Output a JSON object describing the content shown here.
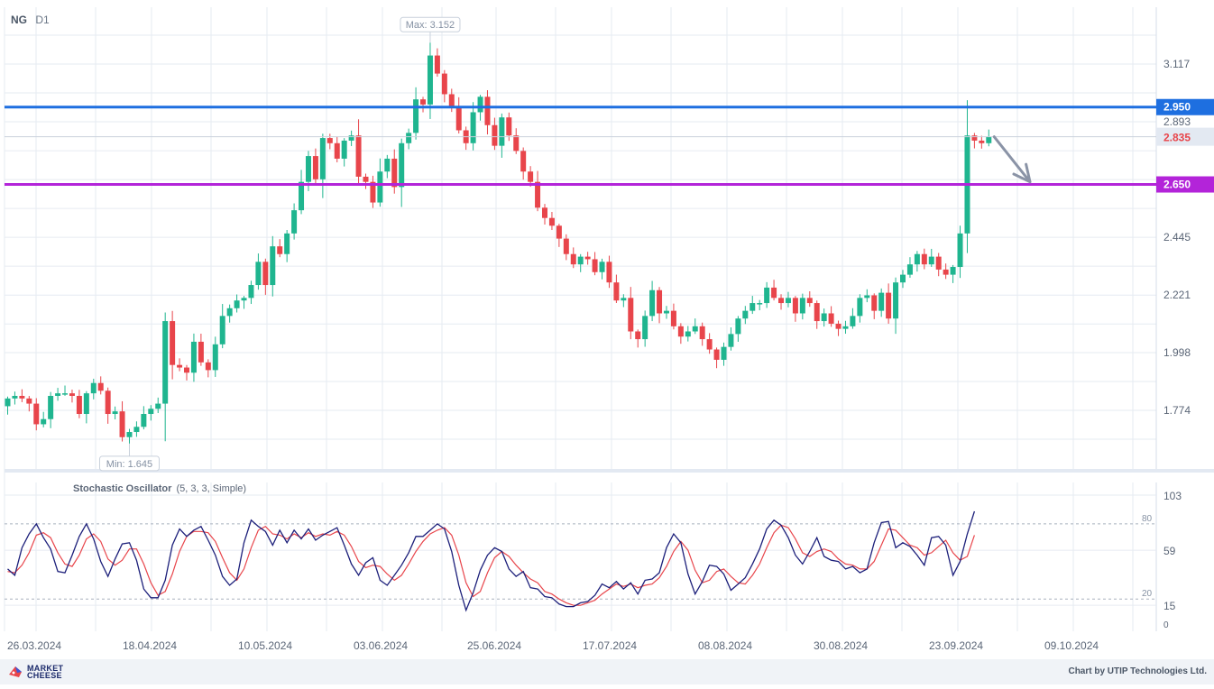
{
  "header": {
    "symbol": "NG",
    "timeframe": "D1"
  },
  "footer": {
    "brand_line1": "MARKET",
    "brand_line2": "CHEESE",
    "credit": "Chart by UTIP Technologies Ltd."
  },
  "colors": {
    "bull": "#1fb58f",
    "bear": "#e8454b",
    "level_resistance": "#1e6fe0",
    "level_support": "#b324d9",
    "stoch_k": "#1c1f7a",
    "stoch_d": "#e8454b",
    "arrow": "#8a93a6"
  },
  "chart_data": [
    {
      "type": "candlestick",
      "symbol": "NG",
      "timeframe": "D1",
      "y_ticks": [
        "3.117",
        "2.893",
        "2.445",
        "2.221",
        "1.998",
        "1.774"
      ],
      "ylim": [
        1.57,
        3.35
      ],
      "x_ticks": [
        "26.03.2024",
        "18.04.2024",
        "10.05.2024",
        "03.06.2024",
        "25.06.2024",
        "17.07.2024",
        "08.08.2024",
        "30.08.2024",
        "23.09.2024",
        "09.10.2024"
      ],
      "grid": true,
      "price_levels": [
        {
          "label": "2.950",
          "value": 2.95,
          "color": "#1e6fe0"
        },
        {
          "label": "2.650",
          "value": 2.65,
          "color": "#b324d9"
        }
      ],
      "current_price": {
        "label": "2.835",
        "value": 2.835
      },
      "annotations": [
        {
          "text": "Max: 3.152",
          "value": 3.152
        },
        {
          "text": "Min: 1.645",
          "value": 1.645
        }
      ],
      "forecast_arrow": {
        "from": [
          2.835,
          2.835
        ],
        "to": 2.66,
        "direction": "down"
      },
      "closes": [
        1.82,
        1.83,
        1.82,
        1.8,
        1.72,
        1.74,
        1.83,
        1.84,
        1.84,
        1.83,
        1.76,
        1.84,
        1.88,
        1.85,
        1.76,
        1.77,
        1.67,
        1.69,
        1.71,
        1.76,
        1.78,
        1.8,
        2.12,
        1.95,
        1.94,
        1.92,
        2.04,
        1.96,
        1.93,
        2.03,
        2.14,
        2.17,
        2.2,
        2.21,
        2.26,
        2.35,
        2.26,
        2.41,
        2.38,
        2.46,
        2.55,
        2.66,
        2.76,
        2.67,
        2.83,
        2.81,
        2.75,
        2.82,
        2.84,
        2.68,
        2.66,
        2.58,
        2.7,
        2.75,
        2.64,
        2.81,
        2.85,
        2.98,
        2.96,
        3.15,
        3.08,
        3.0,
        2.95,
        2.86,
        2.81,
        2.93,
        2.99,
        2.88,
        2.8,
        2.91,
        2.84,
        2.78,
        2.7,
        2.66,
        2.56,
        2.52,
        2.49,
        2.44,
        2.38,
        2.34,
        2.37,
        2.36,
        2.31,
        2.35,
        2.27,
        2.2,
        2.21,
        2.08,
        2.05,
        2.14,
        2.24,
        2.15,
        2.16,
        2.1,
        2.06,
        2.08,
        2.1,
        2.05,
        2.01,
        1.97,
        2.02,
        2.07,
        2.13,
        2.16,
        2.19,
        2.19,
        2.25,
        2.21,
        2.19,
        2.21,
        2.15,
        2.21,
        2.19,
        2.12,
        2.15,
        2.11,
        2.09,
        2.1,
        2.14,
        2.21,
        2.22,
        2.16,
        2.23,
        2.13,
        2.27,
        2.3,
        2.34,
        2.38,
        2.34,
        2.37,
        2.32,
        2.3,
        2.33,
        2.46,
        2.84,
        2.82,
        2.81,
        2.835
      ],
      "stochastic_oscillator": {
        "label": "Stochastic Oscillator",
        "params": "(5, 3, 3, Simple)",
        "y_ticks": [
          "103",
          "59",
          "15",
          "0"
        ],
        "ylim": [
          0,
          103
        ],
        "levels": [
          80,
          20
        ],
        "level_labels": [
          "80",
          "20"
        ],
        "k": [
          44,
          39,
          61,
          72,
          80,
          69,
          60,
          42,
          41,
          55,
          70,
          80,
          68,
          50,
          38,
          52,
          64,
          65,
          51,
          28,
          21,
          21,
          35,
          63,
          76,
          70,
          75,
          78,
          67,
          55,
          38,
          31,
          36,
          65,
          83,
          78,
          74,
          63,
          75,
          65,
          75,
          68,
          76,
          67,
          71,
          74,
          77,
          63,
          48,
          39,
          49,
          53,
          35,
          31,
          39,
          47,
          57,
          70,
          70,
          75,
          80,
          76,
          58,
          31,
          11,
          25,
          43,
          55,
          61,
          58,
          44,
          38,
          42,
          29,
          28,
          22,
          21,
          16,
          14,
          14,
          17,
          18,
          23,
          32,
          29,
          34,
          28,
          33,
          24,
          35,
          36,
          41,
          61,
          72,
          65,
          40,
          24,
          34,
          47,
          46,
          40,
          27,
          32,
          37,
          48,
          60,
          76,
          83,
          79,
          69,
          55,
          48,
          58,
          69,
          54,
          51,
          50,
          44,
          46,
          41,
          44,
          65,
          81,
          82,
          61,
          65,
          62,
          55,
          47,
          69,
          70,
          63,
          39,
          50,
          72,
          90
        ],
        "d": [
          42,
          41,
          47,
          57,
          71,
          73,
          69,
          57,
          48,
          46,
          55,
          68,
          72,
          66,
          52,
          47,
          51,
          60,
          60,
          48,
          33,
          23,
          26,
          40,
          58,
          70,
          74,
          74,
          73,
          66,
          53,
          41,
          35,
          44,
          61,
          75,
          78,
          72,
          71,
          68,
          72,
          69,
          73,
          70,
          72,
          71,
          74,
          71,
          62,
          50,
          45,
          47,
          46,
          40,
          35,
          39,
          48,
          58,
          66,
          72,
          75,
          77,
          71,
          55,
          33,
          22,
          26,
          41,
          53,
          58,
          54,
          47,
          41,
          36,
          33,
          26,
          24,
          20,
          17,
          15,
          15,
          17,
          19,
          24,
          28,
          32,
          30,
          32,
          29,
          31,
          32,
          37,
          46,
          58,
          66,
          59,
          43,
          33,
          35,
          42,
          44,
          38,
          33,
          32,
          39,
          48,
          61,
          73,
          79,
          77,
          68,
          57,
          54,
          58,
          60,
          58,
          52,
          48,
          47,
          44,
          44,
          50,
          63,
          76,
          75,
          69,
          63,
          61,
          55,
          57,
          62,
          67,
          57,
          51,
          54,
          71
        ]
      }
    }
  ]
}
